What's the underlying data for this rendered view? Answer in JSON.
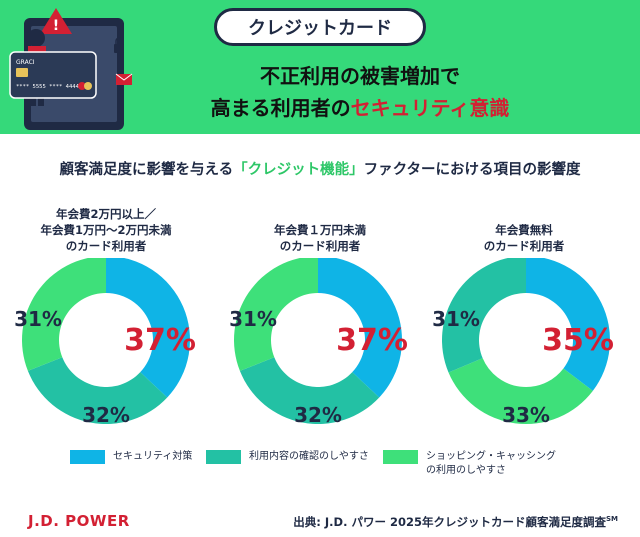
{
  "banner": {
    "pill": "クレジットカード",
    "headline_line1": "不正利用の被害増加で",
    "headline_line2_prefix": "高まる利用者の",
    "headline_line2_highlight": "セキュリティ意識",
    "illustration_card_text": "GRACI",
    "illustration_card_number": "**** 5555 **** 4444"
  },
  "subtitle": {
    "prefix": "顧客満足度に影響を与える",
    "highlight": "「クレジット機能」",
    "suffix": "ファクターにおける項目の影響度"
  },
  "legend": [
    {
      "label": "セキュリティ対策",
      "color": "#0fb4e6"
    },
    {
      "label": "利用内容の確認のしやすさ",
      "color": "#23c1a4"
    },
    {
      "label_line1": "ショッピング・キャッシング",
      "label_line2": "の利用のしやすさ",
      "color": "#3ee07a"
    }
  ],
  "chart_data": [
    {
      "type": "pie",
      "title_lines": [
        "年会費2万円以上／",
        "年会費1万円〜2万円未満",
        "のカード利用者"
      ],
      "labels": [
        "セキュリティ対策",
        "利用内容の確認のしやすさ",
        "ショッピング・キャッシングの利用のしやすさ"
      ],
      "values": [
        37,
        32,
        31
      ],
      "value_labels": [
        "37%",
        "32%",
        "31%"
      ]
    },
    {
      "type": "pie",
      "title_lines": [
        "年会費１万円未満",
        "のカード利用者"
      ],
      "labels": [
        "セキュリティ対策",
        "利用内容の確認のしやすさ",
        "ショッピング・キャッシングの利用のしやすさ"
      ],
      "values": [
        37,
        32,
        31
      ],
      "value_labels": [
        "37%",
        "32%",
        "31%"
      ]
    },
    {
      "type": "pie",
      "title_lines": [
        "年会費無料",
        "のカード利用者"
      ],
      "labels": [
        "セキュリティ対策",
        "ショッピング・キャッシングの利用のしやすさ",
        "利用内容の確認のしやすさ"
      ],
      "values": [
        35,
        33,
        31
      ],
      "value_labels": [
        "35%",
        "33%",
        "31%"
      ]
    }
  ],
  "footer": {
    "logo": "J.D. POWER",
    "source": "出典: J.D. パワー 2025年クレジットカード顧客満足度調査",
    "source_sup": "SM"
  },
  "colors": {
    "security": "#0fb4e6",
    "confirm": "#23c1a4",
    "shopping": "#3ee07a",
    "highlight_pct": "#d32033",
    "dark_pct": "#1f2a44"
  }
}
